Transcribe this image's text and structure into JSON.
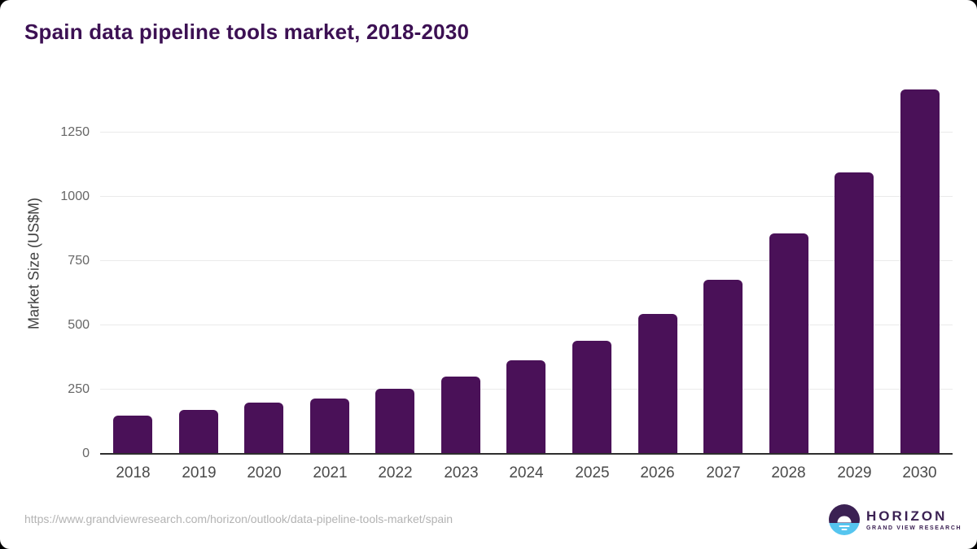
{
  "page": {
    "title": "Spain data pipeline tools market, 2018-2030",
    "source_url": "https://www.grandviewresearch.com/horizon/outlook/data-pipeline-tools-market/spain"
  },
  "logo": {
    "name": "HORIZON",
    "subtitle": "GRAND VIEW RESEARCH"
  },
  "chart_data": {
    "type": "bar",
    "title": "Spain data pipeline tools market, 2018-2030",
    "categories": [
      "2018",
      "2019",
      "2020",
      "2021",
      "2022",
      "2023",
      "2024",
      "2025",
      "2026",
      "2027",
      "2028",
      "2029",
      "2030"
    ],
    "values": [
      145,
      166,
      197,
      213,
      250,
      296,
      359,
      437,
      540,
      673,
      852,
      1091,
      1412
    ],
    "xlabel": "",
    "ylabel": "Market Size (US$M)",
    "yticks": [
      0,
      250,
      500,
      750,
      1000,
      1250
    ],
    "ylim": [
      0,
      1450
    ],
    "grid": true,
    "legend": null,
    "bar_color": "#4a1158"
  },
  "colors": {
    "title_text": "#3c1053",
    "bar": "#4a1158",
    "gridline": "#eaeaea",
    "axis_line": "#2e2e2e",
    "y_tick_text": "#666666",
    "x_tick_text": "#4a4a4a",
    "source_url_text": "#b3b3b3",
    "logo_purple": "#3b2153",
    "logo_blue": "#56c5ef",
    "card_background": "#ffffff"
  }
}
